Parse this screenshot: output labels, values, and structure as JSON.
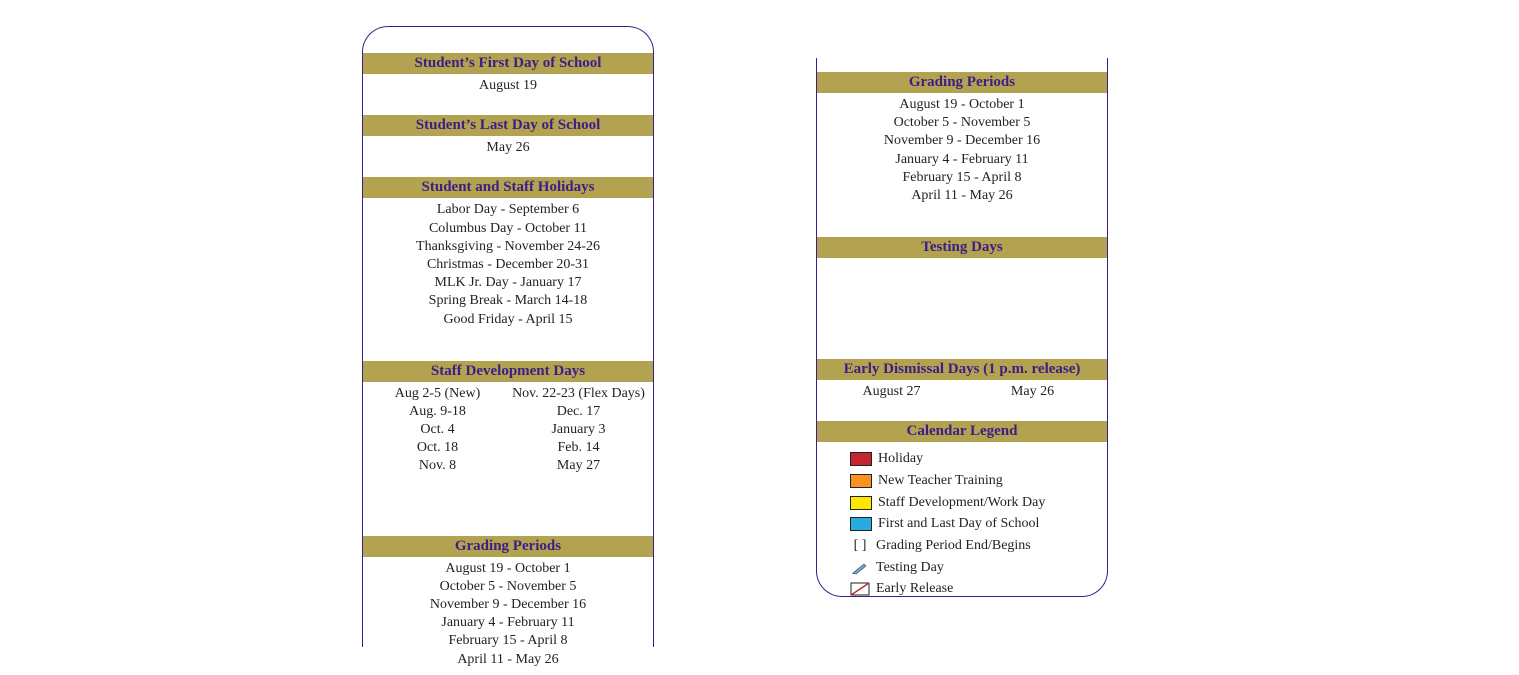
{
  "colors": {
    "header_bg": "#b3a24f",
    "header_text": "#3b1e87",
    "panel_border": "#3b1e87",
    "holiday": "#c1272d",
    "new_teacher": "#f7931e",
    "staff_dev": "#ffe600",
    "first_last": "#29abe2",
    "early_release_stroke": "#c1272d"
  },
  "left": {
    "first_day": {
      "title": "Student’s First Day of School",
      "items": [
        "August 19"
      ]
    },
    "last_day": {
      "title": "Student’s Last Day of School",
      "items": [
        "May 26"
      ]
    },
    "holidays": {
      "title": "Student and Staff Holidays",
      "items": [
        "Labor Day - September 6",
        "Columbus Day - October 11",
        "Thanksgiving - November 24-26",
        "Christmas - December 20-31",
        "MLK Jr. Day - January 17",
        "Spring Break - March 14-18",
        "Good Friday - April 15"
      ]
    },
    "staff_dev": {
      "title": "Staff Development Days",
      "col1": [
        "Aug 2-5 (New)",
        "Aug. 9-18",
        "Oct. 4",
        "Oct. 18",
        "Nov. 8"
      ],
      "col2": [
        "Nov. 22-23 (Flex Days)",
        "Dec. 17",
        "January 3",
        "Feb. 14",
        "May 27"
      ]
    },
    "grading": {
      "title": "Grading Periods",
      "items": [
        "August 19 - October 1",
        "October 5 - November 5",
        "November 9 - December 16",
        "January 4 - February 11",
        "February 15 - April 8",
        "April 11 - May 26"
      ]
    }
  },
  "right": {
    "grading": {
      "title": "Grading Periods",
      "items": [
        "August 19 - October 1",
        "October 5 - November 5",
        "November 9 - December 16",
        "January 4 - February 11",
        "February 15 - April 8",
        "April 11 - May 26"
      ]
    },
    "testing": {
      "title": "Testing Days"
    },
    "early_dismissal": {
      "title": "Early Dismissal Days (1 p.m. release)",
      "col1": [
        "August 27"
      ],
      "col2": [
        "May 26"
      ]
    },
    "legend": {
      "title": "Calendar Legend",
      "items": [
        {
          "kind": "swatch",
          "color": "#c1272d",
          "label": "Holiday"
        },
        {
          "kind": "swatch",
          "color": "#f7931e",
          "label": "New Teacher Training"
        },
        {
          "kind": "swatch",
          "color": "#ffe600",
          "label": "Staff Development/Work Day"
        },
        {
          "kind": "swatch",
          "color": "#29abe2",
          "label": "First and Last Day of School"
        },
        {
          "kind": "text",
          "icon": "[ ]",
          "label": "Grading Period End/Begins"
        },
        {
          "kind": "pen",
          "label": "Testing Day"
        },
        {
          "kind": "slash",
          "label": "Early Release"
        }
      ]
    }
  }
}
